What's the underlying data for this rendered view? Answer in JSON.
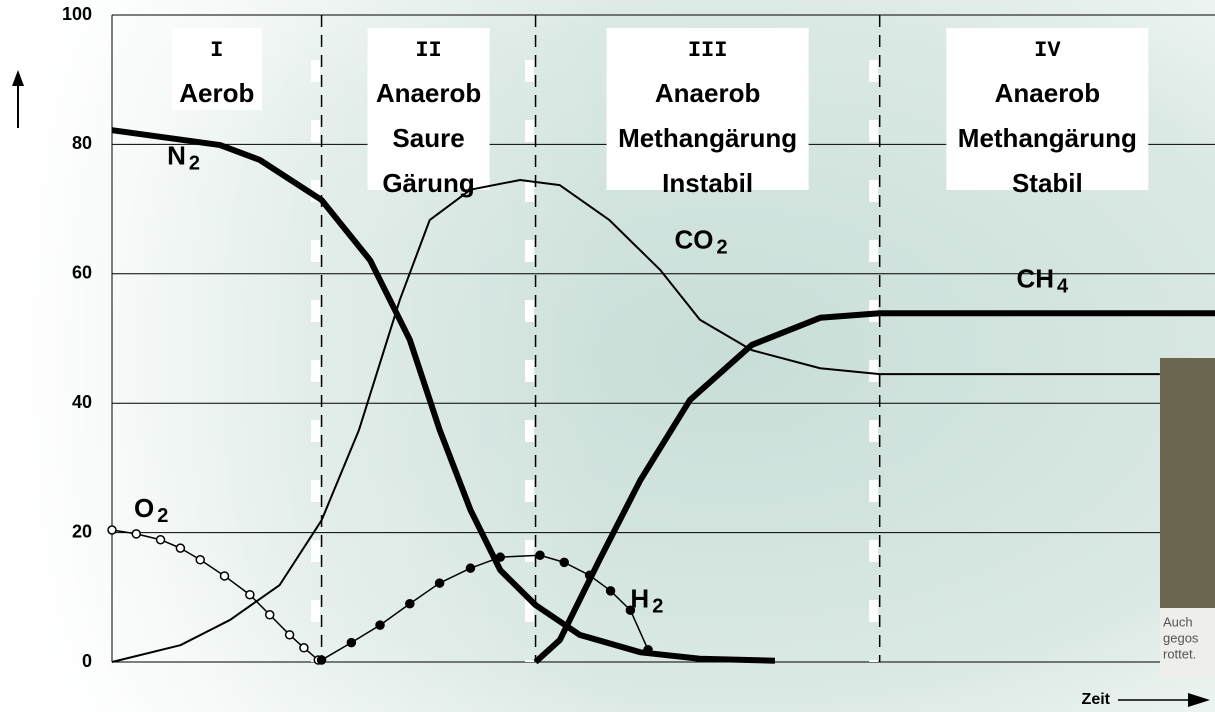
{
  "chart_data": {
    "type": "line",
    "xlim": [
      0,
      100
    ],
    "ylim": [
      0,
      100
    ],
    "yticks": [
      0,
      20,
      40,
      60,
      80,
      100
    ],
    "grid": true,
    "x_label": "Zeit",
    "phases": [
      {
        "numeral": "I",
        "lines": [
          "Aerob"
        ],
        "start": 0,
        "end": 19.0
      },
      {
        "numeral": "II",
        "lines": [
          "Anaerob",
          "Saure",
          "Gärung"
        ],
        "start": 19.0,
        "end": 38.4
      },
      {
        "numeral": "III",
        "lines": [
          "Anaerob",
          "Methangärung",
          "Instabil"
        ],
        "start": 38.4,
        "end": 69.6
      },
      {
        "numeral": "IV",
        "lines": [
          "Anaerob",
          "Methangärung",
          "Stabil"
        ],
        "start": 69.6,
        "end": 100
      }
    ],
    "series": [
      {
        "name": "N2",
        "color": "#000000",
        "width": 6,
        "marker": "none",
        "label_at": [
          5,
          78
        ],
        "x": [
          0,
          9.8,
          13.4,
          19,
          23.4,
          27,
          29.7,
          32.5,
          35.2,
          38.4,
          42.4,
          47.9,
          53.3,
          60.1
        ],
        "values": [
          82.2,
          79.9,
          77.6,
          71.4,
          62.1,
          49.8,
          35.9,
          23.5,
          14.2,
          8.8,
          4.2,
          1.5,
          0.5,
          0.2
        ]
      },
      {
        "name": "CO2",
        "color": "#000000",
        "width": 2,
        "marker": "none",
        "label_at": [
          51,
          65
        ],
        "x": [
          0,
          6.2,
          10.7,
          15.2,
          19,
          22.4,
          26.1,
          28.8,
          32.5,
          37,
          40.6,
          45.1,
          49.7,
          53.3,
          58,
          64.2,
          69.6,
          95
        ],
        "values": [
          0,
          2.6,
          6.5,
          11.9,
          21.9,
          35.9,
          56,
          68.3,
          73,
          74.5,
          73.7,
          68.3,
          60.6,
          52.9,
          48.2,
          45.4,
          44.5,
          44.5
        ]
      },
      {
        "name": "CH4",
        "color": "#000000",
        "width": 6,
        "marker": "none",
        "label_at": [
          82,
          59
        ],
        "x": [
          38.4,
          40.6,
          44.2,
          47.9,
          52.4,
          58,
          64.2,
          69.6,
          100
        ],
        "values": [
          0,
          3.4,
          15.8,
          28.1,
          40.5,
          49,
          53.2,
          53.9,
          53.9
        ]
      },
      {
        "name": "O2",
        "color": "#000000",
        "width": 1.5,
        "marker": "open",
        "label_at": [
          2,
          23.5
        ],
        "x": [
          0,
          2.2,
          4.4,
          6.2,
          8,
          10.2,
          12.5,
          14.3,
          16.1,
          17.4,
          18.7
        ],
        "values": [
          20.4,
          19.8,
          18.9,
          17.6,
          15.8,
          13.3,
          10.4,
          7.3,
          4.2,
          2.2,
          0.3
        ]
      },
      {
        "name": "H2",
        "color": "#000000",
        "width": 1.5,
        "marker": "filled",
        "label_at": [
          47,
          9.5
        ],
        "x": [
          19,
          21.7,
          24.3,
          27,
          29.7,
          32.5,
          35.2,
          38.8,
          41,
          43.3,
          45.2,
          47,
          48.6
        ],
        "values": [
          0.3,
          3,
          5.7,
          9,
          12.2,
          14.5,
          16.2,
          16.5,
          15.4,
          13.4,
          11,
          8,
          1.9
        ]
      }
    ],
    "inset_caption": [
      "Auch",
      "gegos",
      "rottet."
    ]
  }
}
